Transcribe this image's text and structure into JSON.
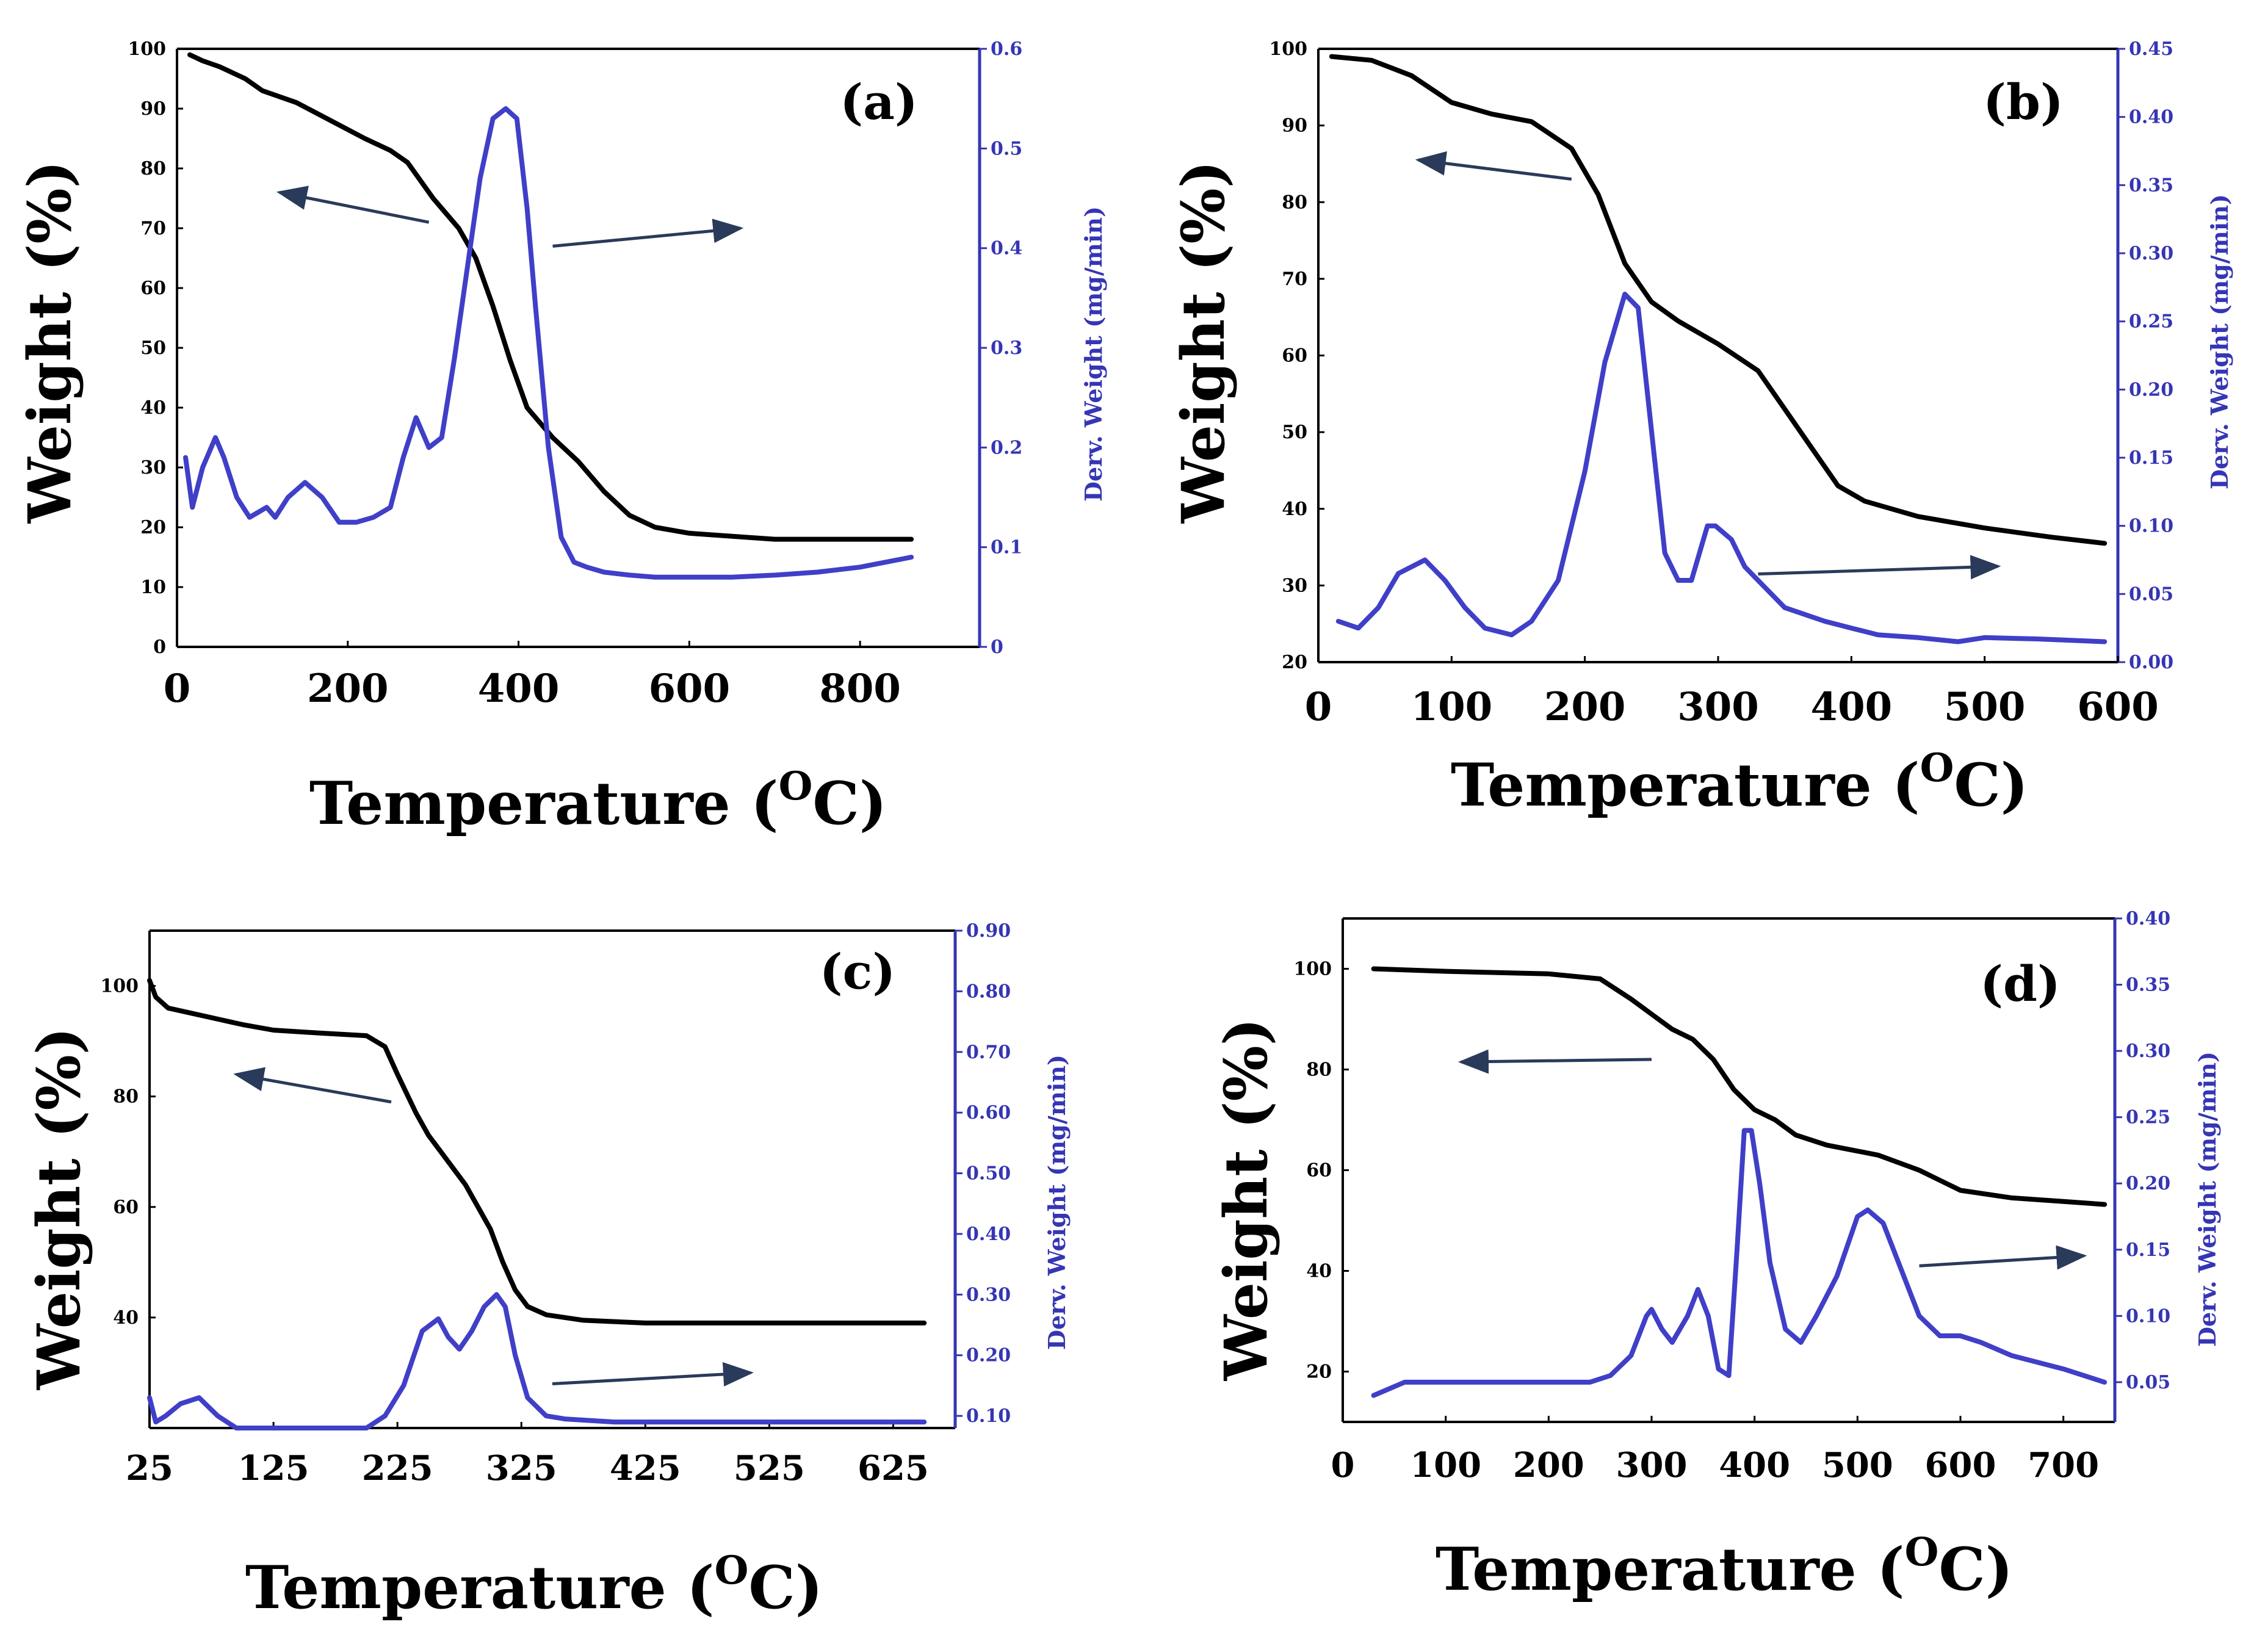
{
  "colors": {
    "weight_line": "#000000",
    "deriv_line": "#3f3fc8",
    "deriv_axis": "#3535b5",
    "arrow": "#2a3a5a"
  },
  "chart_data": [
    {
      "type": "line",
      "panel_label": "(a)",
      "xlabel": "Temperature (",
      "xlabel_sup": "O",
      "xlabel_end": "C)",
      "ylabel": "Weight (%)",
      "y2label": "Derv. Weight (mg/min)",
      "xlim": [
        0,
        940
      ],
      "ylim": [
        0,
        100
      ],
      "y2lim": [
        0,
        0.6
      ],
      "x_ticks": [
        0,
        200,
        400,
        600,
        800
      ],
      "x_tick_labels": [
        "0",
        "200",
        "400",
        "600",
        "800"
      ],
      "y_ticks": [
        0,
        10,
        20,
        30,
        40,
        50,
        60,
        70,
        80,
        90,
        100
      ],
      "y_tick_labels": [
        "0",
        "10",
        "20",
        "30",
        "40",
        "50",
        "60",
        "70",
        "80",
        "90",
        "100"
      ],
      "y2_ticks": [
        0,
        0.1,
        0.2,
        0.3,
        0.4,
        0.5,
        0.6
      ],
      "y2_tick_labels": [
        "0",
        "0.1",
        "0.2",
        "0.3",
        "0.4",
        "0.5",
        "0.6"
      ],
      "series": [
        {
          "name": "Weight",
          "axis": "left",
          "x": [
            15,
            30,
            50,
            80,
            100,
            140,
            180,
            220,
            250,
            270,
            300,
            330,
            350,
            370,
            390,
            410,
            440,
            470,
            500,
            530,
            560,
            600,
            650,
            700,
            780,
            860
          ],
          "y": [
            99,
            98,
            97,
            95,
            93,
            91,
            88,
            85,
            83,
            81,
            75,
            70,
            65,
            57,
            48,
            40,
            35,
            31,
            26,
            22,
            20,
            19,
            18.5,
            18,
            18,
            18
          ]
        },
        {
          "name": "Derv. Weight",
          "axis": "right",
          "x": [
            10,
            18,
            30,
            45,
            55,
            70,
            85,
            95,
            105,
            115,
            130,
            150,
            170,
            190,
            210,
            230,
            250,
            265,
            280,
            295,
            310,
            325,
            340,
            355,
            370,
            385,
            398,
            410,
            420,
            435,
            450,
            465,
            480,
            500,
            530,
            560,
            600,
            650,
            700,
            750,
            800,
            860
          ],
          "y": [
            0.19,
            0.14,
            0.18,
            0.21,
            0.19,
            0.15,
            0.13,
            0.135,
            0.14,
            0.13,
            0.15,
            0.165,
            0.15,
            0.125,
            0.125,
            0.13,
            0.14,
            0.19,
            0.23,
            0.2,
            0.21,
            0.29,
            0.38,
            0.47,
            0.53,
            0.54,
            0.53,
            0.44,
            0.34,
            0.2,
            0.11,
            0.085,
            0.08,
            0.075,
            0.072,
            0.07,
            0.07,
            0.07,
            0.072,
            0.075,
            0.08,
            0.09
          ]
        }
      ],
      "arrows": [
        {
          "from": [
            295,
            71
          ],
          "to": [
            120,
            76
          ]
        },
        {
          "from": [
            440,
            67
          ],
          "to": [
            660,
            70
          ]
        }
      ]
    },
    {
      "type": "line",
      "panel_label": "(b)",
      "xlabel": "Temperature (",
      "xlabel_sup": "O",
      "xlabel_end": "C)",
      "ylabel": "Weight (%)",
      "y2label": "Derv. Weight (mg/min)",
      "xlim": [
        0,
        600
      ],
      "ylim": [
        20,
        100
      ],
      "y2lim": [
        0,
        0.45
      ],
      "x_ticks": [
        0,
        100,
        200,
        300,
        400,
        500,
        600
      ],
      "x_tick_labels": [
        "0",
        "100",
        "200",
        "300",
        "400",
        "500",
        "600"
      ],
      "y_ticks": [
        20,
        30,
        40,
        50,
        60,
        70,
        80,
        90,
        100
      ],
      "y_tick_labels": [
        "20",
        "30",
        "40",
        "50",
        "60",
        "70",
        "80",
        "90",
        "100"
      ],
      "y2_ticks": [
        0,
        0.05,
        0.1,
        0.15,
        0.2,
        0.25,
        0.3,
        0.35,
        0.4,
        0.45
      ],
      "y2_tick_labels": [
        "0.00",
        "0.05",
        "0.10",
        "0.15",
        "0.20",
        "0.25",
        "0.30",
        "0.35",
        "0.40",
        "0.45"
      ],
      "series": [
        {
          "name": "Weight",
          "axis": "left",
          "x": [
            10,
            40,
            70,
            100,
            130,
            160,
            190,
            210,
            230,
            250,
            270,
            300,
            330,
            350,
            370,
            390,
            410,
            450,
            500,
            550,
            590
          ],
          "y": [
            99,
            98.5,
            96.5,
            93,
            91.5,
            90.5,
            87,
            81,
            72,
            67,
            64.5,
            61.5,
            58,
            53,
            48,
            43,
            41,
            39,
            37.5,
            36.3,
            35.5
          ]
        },
        {
          "name": "Derv. Weight",
          "axis": "right",
          "x": [
            15,
            30,
            45,
            60,
            80,
            95,
            110,
            125,
            145,
            160,
            180,
            200,
            215,
            230,
            240,
            250,
            260,
            270,
            280,
            292,
            298,
            310,
            320,
            335,
            350,
            365,
            380,
            400,
            420,
            450,
            480,
            500,
            540,
            590
          ],
          "y": [
            0.03,
            0.025,
            0.04,
            0.065,
            0.075,
            0.06,
            0.04,
            0.025,
            0.02,
            0.03,
            0.06,
            0.14,
            0.22,
            0.27,
            0.26,
            0.17,
            0.08,
            0.06,
            0.06,
            0.1,
            0.1,
            0.09,
            0.07,
            0.055,
            0.04,
            0.035,
            0.03,
            0.025,
            0.02,
            0.018,
            0.015,
            0.018,
            0.017,
            0.015
          ]
        }
      ],
      "arrows": [
        {
          "from": [
            190,
            83
          ],
          "to": [
            75,
            85.5
          ]
        },
        {
          "from": [
            330,
            31.5
          ],
          "to": [
            510,
            32.5
          ]
        }
      ]
    },
    {
      "type": "line",
      "panel_label": "(c)",
      "xlabel": "Temperature (",
      "xlabel_sup": "O",
      "xlabel_end": "C)",
      "ylabel": "Weight (%)",
      "y2label": "Derv. Weight (mg/min)",
      "xlim": [
        25,
        675
      ],
      "ylim": [
        20,
        110
      ],
      "y2lim": [
        0.08,
        0.9
      ],
      "x_ticks": [
        25,
        125,
        225,
        325,
        425,
        525,
        625
      ],
      "x_tick_labels": [
        "25",
        "125",
        "225",
        "325",
        "425",
        "525",
        "625"
      ],
      "y_ticks": [
        40,
        60,
        80,
        100
      ],
      "y_tick_labels": [
        "40",
        "60",
        "80",
        "100"
      ],
      "y2_ticks": [
        0.1,
        0.2,
        0.3,
        0.4,
        0.5,
        0.6,
        0.7,
        0.8,
        0.9
      ],
      "y2_tick_labels": [
        "0.10",
        "0.20",
        "0.30",
        "0.40",
        "0.50",
        "0.60",
        "0.70",
        "0.80",
        "0.90"
      ],
      "series": [
        {
          "name": "Weight",
          "axis": "left",
          "x": [
            25,
            30,
            40,
            60,
            80,
            100,
            125,
            160,
            200,
            215,
            225,
            240,
            250,
            260,
            280,
            300,
            310,
            320,
            330,
            345,
            375,
            425,
            525,
            650
          ],
          "y": [
            101,
            98,
            96,
            95,
            94,
            93,
            92,
            91.5,
            91,
            89,
            84,
            77,
            73,
            70,
            64,
            56,
            50,
            45,
            42,
            40.5,
            39.5,
            39,
            39,
            39
          ]
        },
        {
          "name": "Derv. Weight",
          "axis": "right",
          "x": [
            25,
            30,
            38,
            50,
            65,
            80,
            95,
            110,
            150,
            200,
            215,
            230,
            245,
            258,
            266,
            275,
            285,
            295,
            305,
            312,
            320,
            330,
            345,
            360,
            400,
            500,
            650
          ],
          "y": [
            0.13,
            0.09,
            0.1,
            0.12,
            0.13,
            0.1,
            0.08,
            0.08,
            0.08,
            0.08,
            0.1,
            0.15,
            0.24,
            0.26,
            0.23,
            0.21,
            0.24,
            0.28,
            0.3,
            0.28,
            0.2,
            0.13,
            0.1,
            0.095,
            0.09,
            0.09,
            0.09
          ]
        }
      ],
      "arrows": [
        {
          "from": [
            220,
            79
          ],
          "to": [
            95,
            84
          ]
        },
        {
          "from": [
            350,
            28
          ],
          "to": [
            510,
            30
          ]
        }
      ]
    },
    {
      "type": "line",
      "panel_label": "(d)",
      "xlabel": "Temperature (",
      "xlabel_sup": "O",
      "xlabel_end": "C)",
      "ylabel": "Weight (%)",
      "y2label": "Derv. Weight (mg/min)",
      "xlim": [
        0,
        750
      ],
      "ylim": [
        10,
        110
      ],
      "y2lim": [
        0.02,
        0.4
      ],
      "x_ticks": [
        0,
        100,
        200,
        300,
        400,
        500,
        600,
        700
      ],
      "x_tick_labels": [
        "0",
        "100",
        "200",
        "300",
        "400",
        "500",
        "600",
        "700"
      ],
      "y_ticks": [
        20,
        40,
        60,
        80,
        100
      ],
      "y_tick_labels": [
        "20",
        "40",
        "60",
        "80",
        "100"
      ],
      "y2_ticks": [
        0.05,
        0.1,
        0.15,
        0.2,
        0.25,
        0.3,
        0.35,
        0.4
      ],
      "y2_tick_labels": [
        "0.05",
        "0.10",
        "0.15",
        "0.20",
        "0.25",
        "0.30",
        "0.35",
        "0.40"
      ],
      "series": [
        {
          "name": "Weight",
          "axis": "left",
          "x": [
            30,
            100,
            200,
            250,
            280,
            300,
            320,
            340,
            360,
            380,
            400,
            420,
            440,
            470,
            520,
            560,
            600,
            650,
            700,
            740
          ],
          "y": [
            100,
            99.5,
            99,
            98,
            94,
            91,
            88,
            86,
            82,
            76,
            72,
            70,
            67,
            65,
            63,
            60,
            56,
            54.5,
            53.8,
            53.2
          ]
        },
        {
          "name": "Derv. Weight",
          "axis": "right",
          "x": [
            30,
            60,
            100,
            150,
            200,
            240,
            260,
            280,
            295,
            300,
            310,
            320,
            335,
            345,
            355,
            365,
            375,
            383,
            390,
            397,
            405,
            415,
            430,
            445,
            460,
            480,
            500,
            510,
            525,
            540,
            560,
            580,
            600,
            620,
            650,
            700,
            740
          ],
          "y": [
            0.04,
            0.05,
            0.05,
            0.05,
            0.05,
            0.05,
            0.055,
            0.07,
            0.1,
            0.105,
            0.09,
            0.08,
            0.1,
            0.12,
            0.1,
            0.06,
            0.055,
            0.15,
            0.24,
            0.24,
            0.2,
            0.14,
            0.09,
            0.08,
            0.1,
            0.13,
            0.175,
            0.18,
            0.17,
            0.14,
            0.1,
            0.085,
            0.085,
            0.08,
            0.07,
            0.06,
            0.05
          ]
        }
      ],
      "arrows": [
        {
          "from": [
            300,
            82
          ],
          "to": [
            115,
            81.5
          ]
        },
        {
          "from": [
            560,
            41
          ],
          "to": [
            720,
            43
          ]
        }
      ]
    }
  ]
}
